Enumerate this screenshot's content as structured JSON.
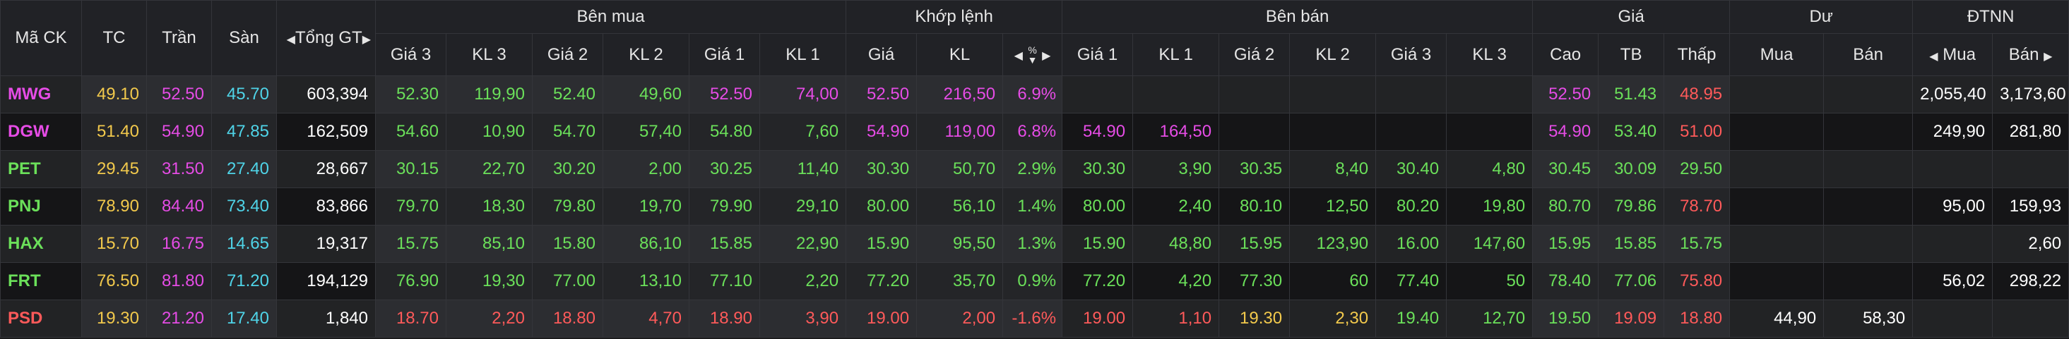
{
  "header": {
    "symbol": "Mã CK",
    "ref": "TC",
    "ceil": "Trần",
    "floor": "Sàn",
    "total": "Tổng GT",
    "groups": {
      "buy": "Bên mua",
      "match": "Khớp lệnh",
      "sell": "Bên bán",
      "price": "Giá",
      "remain": "Dư",
      "foreign": "ĐTNN"
    },
    "buy_cols": [
      "Giá 3",
      "KL 3",
      "Giá 2",
      "KL 2",
      "Giá 1",
      "KL 1"
    ],
    "match_cols": [
      "Giá",
      "KL",
      "%"
    ],
    "sell_cols": [
      "Giá 1",
      "KL 1",
      "Giá 2",
      "KL 2",
      "Giá 3",
      "KL 3"
    ],
    "price_cols": [
      "Cao",
      "TB",
      "Thấp"
    ],
    "remain_cols": [
      "Mua",
      "Bán"
    ],
    "foreign_cols": [
      "Mua",
      "Bán"
    ]
  },
  "colors": {
    "ceiling": "#e64ce6",
    "reference": "#f2c94c",
    "floor": "#4fd4e8",
    "up": "#6be05a",
    "down": "#ff5a5a",
    "neutral": "#ffffff"
  },
  "rows": [
    {
      "symbol": {
        "v": "MWG",
        "c": "ce"
      },
      "ref": "49.10",
      "ceil": "52.50",
      "floor": "45.70",
      "total": "603,394",
      "cells": [
        {
          "v": "52.30",
          "c": "up"
        },
        {
          "v": "119,90",
          "c": "up"
        },
        {
          "v": "52.40",
          "c": "up"
        },
        {
          "v": "49,60",
          "c": "up"
        },
        {
          "v": "52.50",
          "c": "ce"
        },
        {
          "v": "74,00",
          "c": "ce"
        },
        {
          "v": "52.50",
          "c": "ce"
        },
        {
          "v": "216,50",
          "c": "ce"
        },
        {
          "v": "6.9%",
          "c": "ce"
        },
        {
          "v": "",
          "c": "wh"
        },
        {
          "v": "",
          "c": "wh"
        },
        {
          "v": "",
          "c": "wh"
        },
        {
          "v": "",
          "c": "wh"
        },
        {
          "v": "",
          "c": "wh"
        },
        {
          "v": "",
          "c": "wh"
        },
        {
          "v": "52.50",
          "c": "ce"
        },
        {
          "v": "51.43",
          "c": "up"
        },
        {
          "v": "48.95",
          "c": "dn"
        },
        {
          "v": "",
          "c": "wh"
        },
        {
          "v": "",
          "c": "wh"
        },
        {
          "v": "2,055,40",
          "c": "wh"
        },
        {
          "v": "3,173,60",
          "c": "wh"
        }
      ]
    },
    {
      "symbol": {
        "v": "DGW",
        "c": "ce"
      },
      "ref": "51.40",
      "ceil": "54.90",
      "floor": "47.85",
      "total": "162,509",
      "cells": [
        {
          "v": "54.60",
          "c": "up"
        },
        {
          "v": "10,90",
          "c": "up"
        },
        {
          "v": "54.70",
          "c": "up"
        },
        {
          "v": "57,40",
          "c": "up"
        },
        {
          "v": "54.80",
          "c": "up"
        },
        {
          "v": "7,60",
          "c": "up"
        },
        {
          "v": "54.90",
          "c": "ce"
        },
        {
          "v": "119,00",
          "c": "ce"
        },
        {
          "v": "6.8%",
          "c": "ce"
        },
        {
          "v": "54.90",
          "c": "ce"
        },
        {
          "v": "164,50",
          "c": "ce"
        },
        {
          "v": "",
          "c": "wh"
        },
        {
          "v": "",
          "c": "wh"
        },
        {
          "v": "",
          "c": "wh"
        },
        {
          "v": "",
          "c": "wh"
        },
        {
          "v": "54.90",
          "c": "ce"
        },
        {
          "v": "53.40",
          "c": "up"
        },
        {
          "v": "51.00",
          "c": "dn"
        },
        {
          "v": "",
          "c": "wh"
        },
        {
          "v": "",
          "c": "wh"
        },
        {
          "v": "249,90",
          "c": "wh"
        },
        {
          "v": "281,80",
          "c": "wh"
        }
      ]
    },
    {
      "symbol": {
        "v": "PET",
        "c": "up"
      },
      "ref": "29.45",
      "ceil": "31.50",
      "floor": "27.40",
      "total": "28,667",
      "cells": [
        {
          "v": "30.15",
          "c": "up"
        },
        {
          "v": "22,70",
          "c": "up"
        },
        {
          "v": "30.20",
          "c": "up"
        },
        {
          "v": "2,00",
          "c": "up"
        },
        {
          "v": "30.25",
          "c": "up"
        },
        {
          "v": "11,40",
          "c": "up"
        },
        {
          "v": "30.30",
          "c": "up"
        },
        {
          "v": "50,70",
          "c": "up"
        },
        {
          "v": "2.9%",
          "c": "up"
        },
        {
          "v": "30.30",
          "c": "up"
        },
        {
          "v": "3,90",
          "c": "up"
        },
        {
          "v": "30.35",
          "c": "up"
        },
        {
          "v": "8,40",
          "c": "up"
        },
        {
          "v": "30.40",
          "c": "up"
        },
        {
          "v": "4,80",
          "c": "up"
        },
        {
          "v": "30.45",
          "c": "up"
        },
        {
          "v": "30.09",
          "c": "up"
        },
        {
          "v": "29.50",
          "c": "up"
        },
        {
          "v": "",
          "c": "wh"
        },
        {
          "v": "",
          "c": "wh"
        },
        {
          "v": "",
          "c": "wh"
        },
        {
          "v": "",
          "c": "wh"
        }
      ]
    },
    {
      "symbol": {
        "v": "PNJ",
        "c": "up"
      },
      "ref": "78.90",
      "ceil": "84.40",
      "floor": "73.40",
      "total": "83,866",
      "cells": [
        {
          "v": "79.70",
          "c": "up"
        },
        {
          "v": "18,30",
          "c": "up"
        },
        {
          "v": "79.80",
          "c": "up"
        },
        {
          "v": "19,70",
          "c": "up"
        },
        {
          "v": "79.90",
          "c": "up"
        },
        {
          "v": "29,10",
          "c": "up"
        },
        {
          "v": "80.00",
          "c": "up"
        },
        {
          "v": "56,10",
          "c": "up"
        },
        {
          "v": "1.4%",
          "c": "up"
        },
        {
          "v": "80.00",
          "c": "up"
        },
        {
          "v": "2,40",
          "c": "up"
        },
        {
          "v": "80.10",
          "c": "up"
        },
        {
          "v": "12,50",
          "c": "up"
        },
        {
          "v": "80.20",
          "c": "up"
        },
        {
          "v": "19,80",
          "c": "up"
        },
        {
          "v": "80.70",
          "c": "up"
        },
        {
          "v": "79.86",
          "c": "up"
        },
        {
          "v": "78.70",
          "c": "dn"
        },
        {
          "v": "",
          "c": "wh"
        },
        {
          "v": "",
          "c": "wh"
        },
        {
          "v": "95,00",
          "c": "wh"
        },
        {
          "v": "159,93",
          "c": "wh"
        }
      ]
    },
    {
      "symbol": {
        "v": "HAX",
        "c": "up"
      },
      "ref": "15.70",
      "ceil": "16.75",
      "floor": "14.65",
      "total": "19,317",
      "cells": [
        {
          "v": "15.75",
          "c": "up"
        },
        {
          "v": "85,10",
          "c": "up"
        },
        {
          "v": "15.80",
          "c": "up"
        },
        {
          "v": "86,10",
          "c": "up"
        },
        {
          "v": "15.85",
          "c": "up"
        },
        {
          "v": "22,90",
          "c": "up"
        },
        {
          "v": "15.90",
          "c": "up"
        },
        {
          "v": "95,50",
          "c": "up"
        },
        {
          "v": "1.3%",
          "c": "up"
        },
        {
          "v": "15.90",
          "c": "up"
        },
        {
          "v": "48,80",
          "c": "up"
        },
        {
          "v": "15.95",
          "c": "up"
        },
        {
          "v": "123,90",
          "c": "up"
        },
        {
          "v": "16.00",
          "c": "up"
        },
        {
          "v": "147,60",
          "c": "up"
        },
        {
          "v": "15.95",
          "c": "up"
        },
        {
          "v": "15.85",
          "c": "up"
        },
        {
          "v": "15.75",
          "c": "up"
        },
        {
          "v": "",
          "c": "wh"
        },
        {
          "v": "",
          "c": "wh"
        },
        {
          "v": "",
          "c": "wh"
        },
        {
          "v": "2,60",
          "c": "wh"
        }
      ]
    },
    {
      "symbol": {
        "v": "FRT",
        "c": "up"
      },
      "ref": "76.50",
      "ceil": "81.80",
      "floor": "71.20",
      "total": "194,129",
      "cells": [
        {
          "v": "76.90",
          "c": "up"
        },
        {
          "v": "19,30",
          "c": "up"
        },
        {
          "v": "77.00",
          "c": "up"
        },
        {
          "v": "13,10",
          "c": "up"
        },
        {
          "v": "77.10",
          "c": "up"
        },
        {
          "v": "2,20",
          "c": "up"
        },
        {
          "v": "77.20",
          "c": "up"
        },
        {
          "v": "35,70",
          "c": "up"
        },
        {
          "v": "0.9%",
          "c": "up"
        },
        {
          "v": "77.20",
          "c": "up"
        },
        {
          "v": "4,20",
          "c": "up"
        },
        {
          "v": "77.30",
          "c": "up"
        },
        {
          "v": "60",
          "c": "up"
        },
        {
          "v": "77.40",
          "c": "up"
        },
        {
          "v": "50",
          "c": "up"
        },
        {
          "v": "78.40",
          "c": "up"
        },
        {
          "v": "77.06",
          "c": "up"
        },
        {
          "v": "75.80",
          "c": "dn"
        },
        {
          "v": "",
          "c": "wh"
        },
        {
          "v": "",
          "c": "wh"
        },
        {
          "v": "56,02",
          "c": "wh"
        },
        {
          "v": "298,22",
          "c": "wh"
        }
      ]
    },
    {
      "symbol": {
        "v": "PSD",
        "c": "dn"
      },
      "ref": "19.30",
      "ceil": "21.20",
      "floor": "17.40",
      "total": "1,840",
      "cells": [
        {
          "v": "18.70",
          "c": "dn"
        },
        {
          "v": "2,20",
          "c": "dn"
        },
        {
          "v": "18.80",
          "c": "dn"
        },
        {
          "v": "4,70",
          "c": "dn"
        },
        {
          "v": "18.90",
          "c": "dn"
        },
        {
          "v": "3,90",
          "c": "dn"
        },
        {
          "v": "19.00",
          "c": "dn"
        },
        {
          "v": "2,00",
          "c": "dn"
        },
        {
          "v": "-1.6%",
          "c": "dn"
        },
        {
          "v": "19.00",
          "c": "dn"
        },
        {
          "v": "1,10",
          "c": "dn"
        },
        {
          "v": "19.30",
          "c": "tc"
        },
        {
          "v": "2,30",
          "c": "tc"
        },
        {
          "v": "19.40",
          "c": "up"
        },
        {
          "v": "12,70",
          "c": "up"
        },
        {
          "v": "19.50",
          "c": "up"
        },
        {
          "v": "19.09",
          "c": "dn"
        },
        {
          "v": "18.80",
          "c": "dn"
        },
        {
          "v": "44,90",
          "c": "wh"
        },
        {
          "v": "58,30",
          "c": "wh"
        },
        {
          "v": "",
          "c": "wh"
        },
        {
          "v": "",
          "c": "wh"
        }
      ]
    }
  ]
}
